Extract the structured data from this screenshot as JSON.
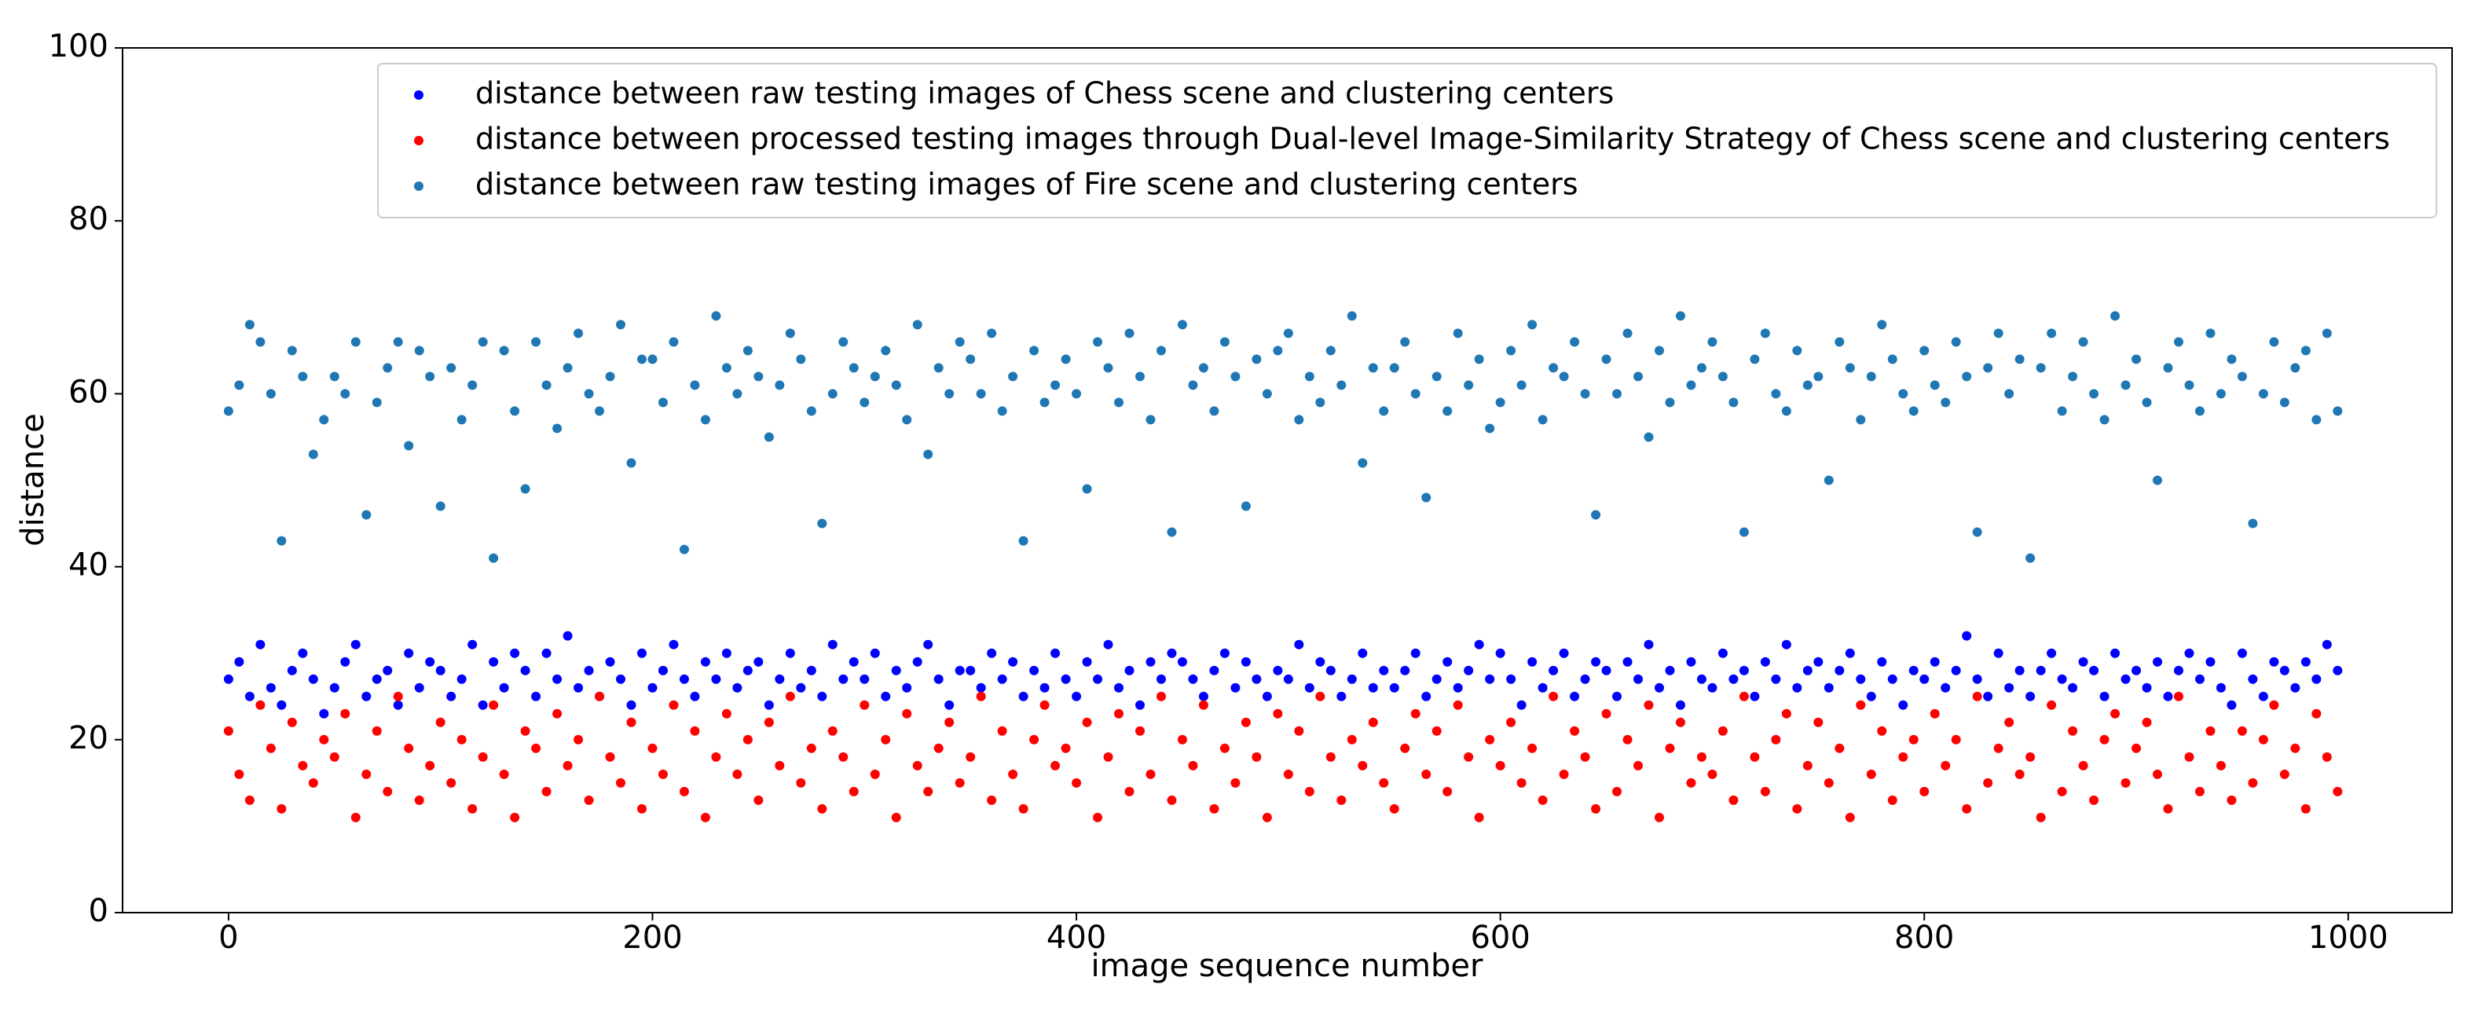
{
  "chart_data": {
    "type": "scatter",
    "x_label": "image sequence number",
    "y_label": "distance",
    "xlim": [
      -50,
      1049
    ],
    "ylim": [
      0,
      100
    ],
    "xticks": [
      0,
      200,
      400,
      600,
      800,
      1000
    ],
    "yticks": [
      0,
      20,
      40,
      60,
      80,
      100
    ],
    "legend_position": "upper-right",
    "x": [
      0,
      5,
      10,
      15,
      20,
      25,
      30,
      35,
      40,
      45,
      50,
      55,
      60,
      65,
      70,
      75,
      80,
      85,
      90,
      95,
      100,
      105,
      110,
      115,
      120,
      125,
      130,
      135,
      140,
      145,
      150,
      155,
      160,
      165,
      170,
      175,
      180,
      185,
      190,
      195,
      200,
      205,
      210,
      215,
      220,
      225,
      230,
      235,
      240,
      245,
      250,
      255,
      260,
      265,
      270,
      275,
      280,
      285,
      290,
      295,
      300,
      305,
      310,
      315,
      320,
      325,
      330,
      335,
      340,
      345,
      350,
      355,
      360,
      365,
      370,
      375,
      380,
      385,
      390,
      395,
      400,
      405,
      410,
      415,
      420,
      425,
      430,
      435,
      440,
      445,
      450,
      455,
      460,
      465,
      470,
      475,
      480,
      485,
      490,
      495,
      500,
      505,
      510,
      515,
      520,
      525,
      530,
      535,
      540,
      545,
      550,
      555,
      560,
      565,
      570,
      575,
      580,
      585,
      590,
      595,
      600,
      605,
      610,
      615,
      620,
      625,
      630,
      635,
      640,
      645,
      650,
      655,
      660,
      665,
      670,
      675,
      680,
      685,
      690,
      695,
      700,
      705,
      710,
      715,
      720,
      725,
      730,
      735,
      740,
      745,
      750,
      755,
      760,
      765,
      770,
      775,
      780,
      785,
      790,
      795,
      800,
      805,
      810,
      815,
      820,
      825,
      830,
      835,
      840,
      845,
      850,
      855,
      860,
      865,
      870,
      875,
      880,
      885,
      890,
      895,
      900,
      905,
      910,
      915,
      920,
      925,
      930,
      935,
      940,
      945,
      950,
      955,
      960,
      965,
      970,
      975,
      980,
      985,
      990,
      995
    ],
    "series": [
      {
        "name": "distance between raw testing images of Chess scene and clustering centers",
        "color": "#0000ff",
        "values": [
          27,
          29,
          25,
          31,
          26,
          24,
          28,
          30,
          27,
          23,
          26,
          29,
          31,
          25,
          27,
          28,
          24,
          30,
          26,
          29,
          28,
          25,
          27,
          31,
          24,
          29,
          26,
          30,
          28,
          25,
          30,
          27,
          32,
          26,
          28,
          25,
          29,
          27,
          24,
          30,
          26,
          28,
          31,
          27,
          25,
          29,
          27,
          30,
          26,
          28,
          29,
          24,
          27,
          30,
          26,
          28,
          25,
          31,
          27,
          29,
          27,
          30,
          25,
          28,
          26,
          29,
          31,
          27,
          24,
          28,
          28,
          26,
          30,
          27,
          29,
          25,
          28,
          26,
          30,
          27,
          25,
          29,
          27,
          31,
          26,
          28,
          24,
          29,
          27,
          30,
          29,
          27,
          25,
          28,
          30,
          26,
          29,
          27,
          25,
          28,
          27,
          31,
          26,
          29,
          28,
          25,
          27,
          30,
          26,
          28,
          26,
          28,
          30,
          25,
          27,
          29,
          26,
          28,
          31,
          27,
          30,
          27,
          24,
          29,
          26,
          28,
          30,
          25,
          27,
          29,
          28,
          25,
          29,
          27,
          31,
          26,
          28,
          24,
          29,
          27,
          26,
          30,
          27,
          28,
          25,
          29,
          27,
          31,
          26,
          28,
          29,
          26,
          28,
          30,
          27,
          25,
          29,
          27,
          24,
          28,
          27,
          29,
          26,
          28,
          32,
          27,
          25,
          30,
          26,
          28,
          25,
          28,
          30,
          27,
          26,
          29,
          28,
          25,
          30,
          27,
          28,
          26,
          29,
          25,
          28,
          30,
          27,
          29,
          26,
          24,
          30,
          27,
          25,
          29,
          28,
          26,
          29,
          27,
          31,
          28
        ]
      },
      {
        "name": "distance between processed testing images through Dual-level Image-Similarity Strategy of Chess scene and clustering centers",
        "color": "#ff0000",
        "values": [
          21,
          16,
          13,
          24,
          19,
          12,
          22,
          17,
          15,
          20,
          18,
          23,
          11,
          16,
          21,
          14,
          25,
          19,
          13,
          17,
          22,
          15,
          20,
          12,
          18,
          24,
          16,
          11,
          21,
          19,
          14,
          23,
          17,
          20,
          13,
          25,
          18,
          15,
          22,
          12,
          19,
          16,
          24,
          14,
          21,
          11,
          18,
          23,
          16,
          20,
          13,
          22,
          17,
          25,
          15,
          19,
          12,
          21,
          18,
          14,
          24,
          16,
          20,
          11,
          23,
          17,
          14,
          19,
          22,
          15,
          18,
          25,
          13,
          21,
          16,
          12,
          20,
          24,
          17,
          19,
          15,
          22,
          11,
          18,
          23,
          14,
          21,
          16,
          25,
          13,
          20,
          17,
          24,
          12,
          19,
          15,
          22,
          18,
          11,
          23,
          16,
          21,
          14,
          25,
          18,
          13,
          20,
          17,
          22,
          15,
          12,
          19,
          23,
          16,
          21,
          14,
          24,
          18,
          11,
          20,
          17,
          22,
          15,
          19,
          13,
          25,
          16,
          21,
          18,
          12,
          23,
          14,
          20,
          17,
          24,
          11,
          19,
          22,
          15,
          18,
          16,
          21,
          13,
          25,
          18,
          14,
          20,
          23,
          12,
          17,
          22,
          15,
          19,
          11,
          24,
          16,
          21,
          13,
          18,
          20,
          14,
          23,
          17,
          20,
          12,
          25,
          15,
          19,
          22,
          16,
          18,
          11,
          24,
          14,
          21,
          17,
          13,
          20,
          23,
          15,
          19,
          22,
          16,
          12,
          25,
          18,
          14,
          21,
          17,
          13,
          21,
          15,
          20,
          24,
          16,
          19,
          12,
          23,
          18,
          14
        ]
      },
      {
        "name": "distance between raw testing images of Fire scene and clustering centers",
        "color": "#1f77b4",
        "values": [
          58,
          61,
          68,
          66,
          60,
          43,
          65,
          62,
          53,
          57,
          62,
          60,
          66,
          46,
          59,
          63,
          66,
          54,
          65,
          62,
          47,
          63,
          57,
          61,
          66,
          41,
          65,
          58,
          49,
          66,
          61,
          56,
          63,
          67,
          60,
          58,
          62,
          68,
          52,
          64,
          64,
          59,
          66,
          42,
          61,
          57,
          69,
          63,
          60,
          65,
          62,
          55,
          61,
          67,
          64,
          58,
          45,
          60,
          66,
          63,
          59,
          62,
          65,
          61,
          57,
          68,
          53,
          63,
          60,
          66,
          64,
          60,
          67,
          58,
          62,
          43,
          65,
          59,
          61,
          64,
          60,
          49,
          66,
          63,
          59,
          67,
          62,
          57,
          65,
          44,
          68,
          61,
          63,
          58,
          66,
          62,
          47,
          64,
          60,
          65,
          67,
          57,
          62,
          59,
          65,
          61,
          69,
          52,
          63,
          58,
          63,
          66,
          60,
          48,
          62,
          58,
          67,
          61,
          64,
          56,
          59,
          65,
          61,
          68,
          57,
          63,
          62,
          66,
          60,
          46,
          64,
          60,
          67,
          62,
          55,
          65,
          59,
          69,
          61,
          63,
          66,
          62,
          59,
          44,
          64,
          67,
          60,
          58,
          65,
          61,
          62,
          50,
          66,
          63,
          57,
          62,
          68,
          64,
          60,
          58,
          65,
          61,
          59,
          66,
          62,
          44,
          63,
          67,
          60,
          64,
          41,
          63,
          67,
          58,
          62,
          66,
          60,
          57,
          69,
          61,
          64,
          59,
          50,
          63,
          66,
          61,
          58,
          67,
          60,
          64,
          62,
          45,
          60,
          66,
          59,
          63,
          65,
          57,
          67,
          58
        ]
      }
    ]
  }
}
